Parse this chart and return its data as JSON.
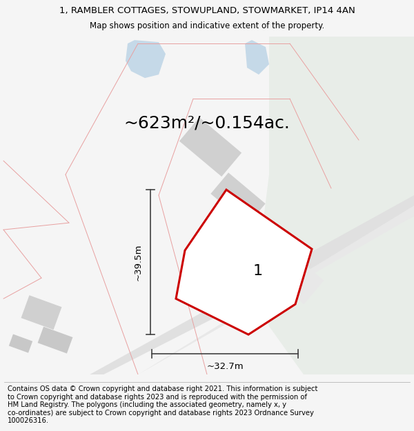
{
  "title_line1": "1, RAMBLER COTTAGES, STOWUPLAND, STOWMARKET, IP14 4AN",
  "title_line2": "Map shows position and indicative extent of the property.",
  "area_text": "~623m²/~0.154ac.",
  "label_1": "1",
  "dim_height": "~39.5m",
  "dim_width": "~32.7m",
  "footer_lines": [
    "Contains OS data © Crown copyright and database right 2021. This information is subject",
    "to Crown copyright and database rights 2023 and is reproduced with the permission of",
    "HM Land Registry. The polygons (including the associated geometry, namely x, y",
    "co-ordinates) are subject to Crown copyright and database rights 2023 Ordnance Survey",
    "100026316."
  ],
  "bg_color": "#f5f5f5",
  "map_bg": "#f8f8f8",
  "green_color": "#e8ede8",
  "blue_color": "#c5d9e8",
  "gray_road": "#e0e0e0",
  "gray_bldg": "#d0d0d0",
  "gray_bldg2": "#e8e8e8",
  "boundary_color": "#e8a0a0",
  "plot_fill": "#ffffff",
  "plot_edge": "#cc0000",
  "dim_color": "#404040",
  "title_fs": 9.5,
  "subtitle_fs": 8.5,
  "area_fs": 18,
  "label_fs": 16,
  "dim_fs": 9.5,
  "footer_fs": 7.2,
  "plot_lw": 2.2,
  "boundary_lw": 0.7,
  "dim_lw": 1.2
}
